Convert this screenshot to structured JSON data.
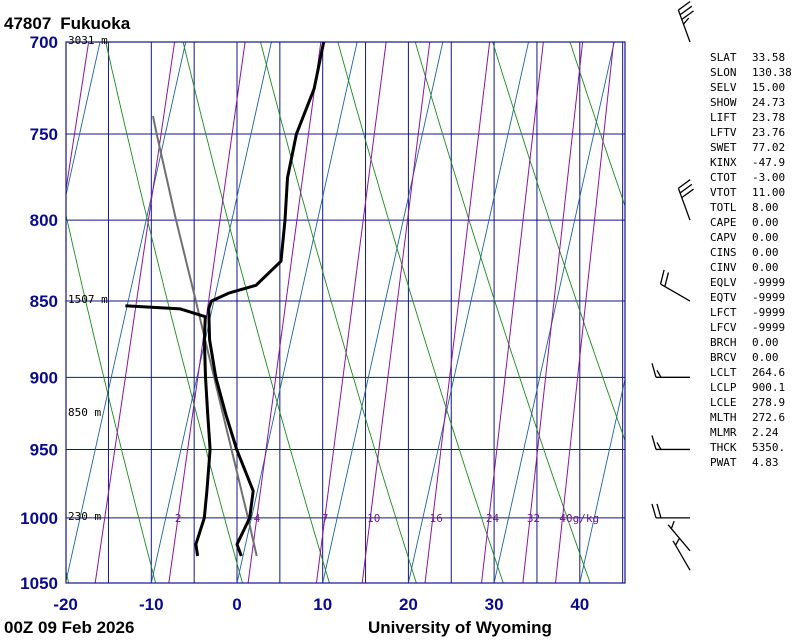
{
  "station": {
    "id": "47807",
    "name": "Fukuoka"
  },
  "footer": {
    "time": "00Z 09 Feb 2026",
    "source": "University of Wyoming"
  },
  "chart_data": {
    "type": "line",
    "title": "47807  Fukuoka",
    "pressure_levels": [
      700,
      750,
      800,
      850,
      900,
      950,
      1000,
      1050
    ],
    "temperature_ticks": [
      -20,
      -10,
      0,
      10,
      20,
      30,
      40
    ],
    "xlim": [
      -20,
      45
    ],
    "ylim": [
      1050,
      700
    ],
    "height_labels": [
      {
        "p": 700,
        "text": "3031 m"
      },
      {
        "p": 850,
        "text": "1507 m"
      },
      {
        "p": 925,
        "text": "850 m"
      },
      {
        "p": 1000,
        "text": "230 m"
      }
    ],
    "mixing_ratio_labels": [
      "2",
      "4",
      "7",
      "10",
      "16",
      "24",
      "32",
      "40g/kg"
    ],
    "series": [
      {
        "type": "temperature",
        "points": [
          [
            1029,
            -0.2
          ],
          [
            1020,
            -1.0
          ],
          [
            1000,
            -0.2
          ],
          [
            980,
            -0.5
          ],
          [
            950,
            -3.5
          ],
          [
            925,
            -5.7
          ],
          [
            900,
            -7.8
          ],
          [
            875,
            -9.5
          ],
          [
            855,
            -10.4
          ],
          [
            850,
            -10.3
          ],
          [
            845,
            -8.5
          ],
          [
            840,
            -5.5
          ],
          [
            825,
            -3.2
          ],
          [
            800,
            -3.8
          ],
          [
            775,
            -4.6
          ],
          [
            750,
            -4.7
          ],
          [
            725,
            -3.8
          ],
          [
            700,
            -3.9
          ]
        ]
      },
      {
        "type": "dewpoint",
        "points": [
          [
            1029,
            -5.3
          ],
          [
            1020,
            -5.8
          ],
          [
            1000,
            -5.5
          ],
          [
            980,
            -5.9
          ],
          [
            950,
            -6.6
          ],
          [
            925,
            -7.8
          ],
          [
            900,
            -9.0
          ],
          [
            875,
            -10.1
          ],
          [
            860,
            -10.6
          ],
          [
            855,
            -13.7
          ],
          [
            853,
            -20.2
          ]
        ]
      },
      {
        "type": "parcel",
        "points": [
          [
            1029,
            1.6
          ],
          [
            1000,
            -0.4
          ],
          [
            950,
            -4.1
          ],
          [
            900,
            -8.0
          ],
          [
            850,
            -12.1
          ],
          [
            800,
            -16.5
          ],
          [
            750,
            -21.0
          ],
          [
            740,
            -21.9
          ]
        ]
      }
    ],
    "winds": [
      {
        "p": 700,
        "dir": 340,
        "spd": 35
      },
      {
        "p": 800,
        "dir": 340,
        "spd": 30
      },
      {
        "p": 850,
        "dir": 300,
        "spd": 20
      },
      {
        "p": 900,
        "dir": 270,
        "spd": 15
      },
      {
        "p": 950,
        "dir": 270,
        "spd": 15
      },
      {
        "p": 1000,
        "dir": 270,
        "spd": 20
      },
      {
        "p": 1025,
        "dir": 320,
        "spd": 5
      },
      {
        "p": 1040,
        "dir": 330,
        "spd": 5
      }
    ]
  },
  "indices": [
    {
      "k": "SLAT",
      "v": "33.58"
    },
    {
      "k": "SLON",
      "v": "130.38"
    },
    {
      "k": "SELV",
      "v": "15.00"
    },
    {
      "k": "SHOW",
      "v": "24.73"
    },
    {
      "k": "LIFT",
      "v": "23.78"
    },
    {
      "k": "LFTV",
      "v": "23.76"
    },
    {
      "k": "SWET",
      "v": "77.02"
    },
    {
      "k": "KINX",
      "v": "-47.9"
    },
    {
      "k": "CTOT",
      "v": "-3.00"
    },
    {
      "k": "VTOT",
      "v": "11.00"
    },
    {
      "k": "TOTL",
      "v": "8.00"
    },
    {
      "k": "CAPE",
      "v": "0.00"
    },
    {
      "k": "CAPV",
      "v": "0.00"
    },
    {
      "k": "CINS",
      "v": "0.00"
    },
    {
      "k": "CINV",
      "v": "0.00"
    },
    {
      "k": "EQLV",
      "v": "-9999"
    },
    {
      "k": "EQTV",
      "v": "-9999"
    },
    {
      "k": "LFCT",
      "v": "-9999"
    },
    {
      "k": "LFCV",
      "v": "-9999"
    },
    {
      "k": "BRCH",
      "v": "0.00"
    },
    {
      "k": "BRCV",
      "v": "0.00"
    },
    {
      "k": "LCLT",
      "v": "264.6"
    },
    {
      "k": "LCLP",
      "v": "900.1"
    },
    {
      "k": "LCLE",
      "v": "278.9"
    },
    {
      "k": "MLTH",
      "v": "272.6"
    },
    {
      "k": "MLMR",
      "v": "2.24"
    },
    {
      "k": "THCK",
      "v": "5350."
    },
    {
      "k": "PWAT",
      "v": "4.83"
    }
  ],
  "colors": {
    "grid": "#14148c",
    "isotherm": "#1e64a0",
    "dry_adiabat": "#1a8c1a",
    "mixing_ratio": "#8c14a0",
    "profile": "#000000",
    "parcel": "#707070"
  }
}
